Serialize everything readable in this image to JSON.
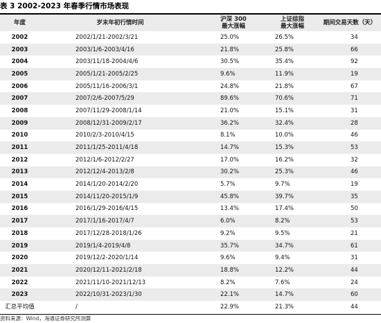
{
  "title": "表 3  2002-2023 年春季行情市场表现",
  "headers": {
    "year": "年度",
    "period": "岁末年初行情时间",
    "hs300_line1": "沪深 300",
    "hs300_line2": "最大涨幅",
    "sse_line1": "上证综指",
    "sse_line2": "最大涨幅",
    "days": "期间交易天数（天）"
  },
  "rows": [
    {
      "year": "2002",
      "period": "2002/1/21-2002/3/21",
      "hs300": "25.0%",
      "sse": "26.5%",
      "days": "34"
    },
    {
      "year": "2003",
      "period": "2003/1/6-2003/4/16",
      "hs300": "21.8%",
      "sse": "25.8%",
      "days": "66"
    },
    {
      "year": "2004",
      "period": "2003/11/18-2004/4/6",
      "hs300": "30.5%",
      "sse": "35.4%",
      "days": "92"
    },
    {
      "year": "2005",
      "period": "2005/1/21-2005/2/25",
      "hs300": "9.6%",
      "sse": "11.9%",
      "days": "19"
    },
    {
      "year": "2006",
      "period": "2005/11/16-2006/3/1",
      "hs300": "24.8%",
      "sse": "21.8%",
      "days": "67"
    },
    {
      "year": "2007",
      "period": "2007/2/6-2007/5/29",
      "hs300": "89.6%",
      "sse": "70.6%",
      "days": "71"
    },
    {
      "year": "2008",
      "period": "2007/11/29-2008/1/14",
      "hs300": "21.0%",
      "sse": "15.1%",
      "days": "31"
    },
    {
      "year": "2009",
      "period": "2008/12/31-2009/2/17",
      "hs300": "36.2%",
      "sse": "32.4%",
      "days": "28"
    },
    {
      "year": "2010",
      "period": "2010/2/3-2010/4/15",
      "hs300": "8.1%",
      "sse": "10.0%",
      "days": "46"
    },
    {
      "year": "2011",
      "period": "2011/1/25-2011/4/18",
      "hs300": "14.7%",
      "sse": "15.3%",
      "days": "53"
    },
    {
      "year": "2012",
      "period": "2012/1/6-2012/2/27",
      "hs300": "17.0%",
      "sse": "16.2%",
      "days": "32"
    },
    {
      "year": "2013",
      "period": "2012/12/4-2013/2/8",
      "hs300": "30.2%",
      "sse": "25.3%",
      "days": "46"
    },
    {
      "year": "2014",
      "period": "2014/1/20-2014/2/20",
      "hs300": "5.7%",
      "sse": "9.7%",
      "days": "19"
    },
    {
      "year": "2015",
      "period": "2014/11/20-2015/1/9",
      "hs300": "45.8%",
      "sse": "39.7%",
      "days": "35"
    },
    {
      "year": "2016",
      "period": "2016/1/29-2016/4/15",
      "hs300": "13.4%",
      "sse": "17.4%",
      "days": "50"
    },
    {
      "year": "2017",
      "period": "2017/1/16-2017/4/7",
      "hs300": "6.0%",
      "sse": "8.2%",
      "days": "53"
    },
    {
      "year": "2018",
      "period": "2017/12/28-2018/1/26",
      "hs300": "9.2%",
      "sse": "9.5%",
      "days": "21"
    },
    {
      "year": "2019",
      "period": "2019/1/4-2019/4/8",
      "hs300": "35.7%",
      "sse": "34.7%",
      "days": "61"
    },
    {
      "year": "2020",
      "period": "2019/12/2-2020/1/14",
      "hs300": "9.6%",
      "sse": "9.4%",
      "days": "31"
    },
    {
      "year": "2021",
      "period": "2020/12/11-2021/2/18",
      "hs300": "18.8%",
      "sse": "12.2%",
      "days": "44"
    },
    {
      "year": "2022",
      "period": "2021/11/10-2021/12/13",
      "hs300": "8.2%",
      "sse": "7.6%",
      "days": "24"
    },
    {
      "year": "2023",
      "period": "2022/10/31-2023/1/30",
      "hs300": "22.1%",
      "sse": "14.7%",
      "days": "60"
    }
  ],
  "summary": {
    "year": "汇总平均值",
    "period": "/",
    "hs300": "22.9%",
    "sse": "21.3%",
    "days": "44"
  },
  "source": "资料来源：Wind，海通证券研究所测算"
}
